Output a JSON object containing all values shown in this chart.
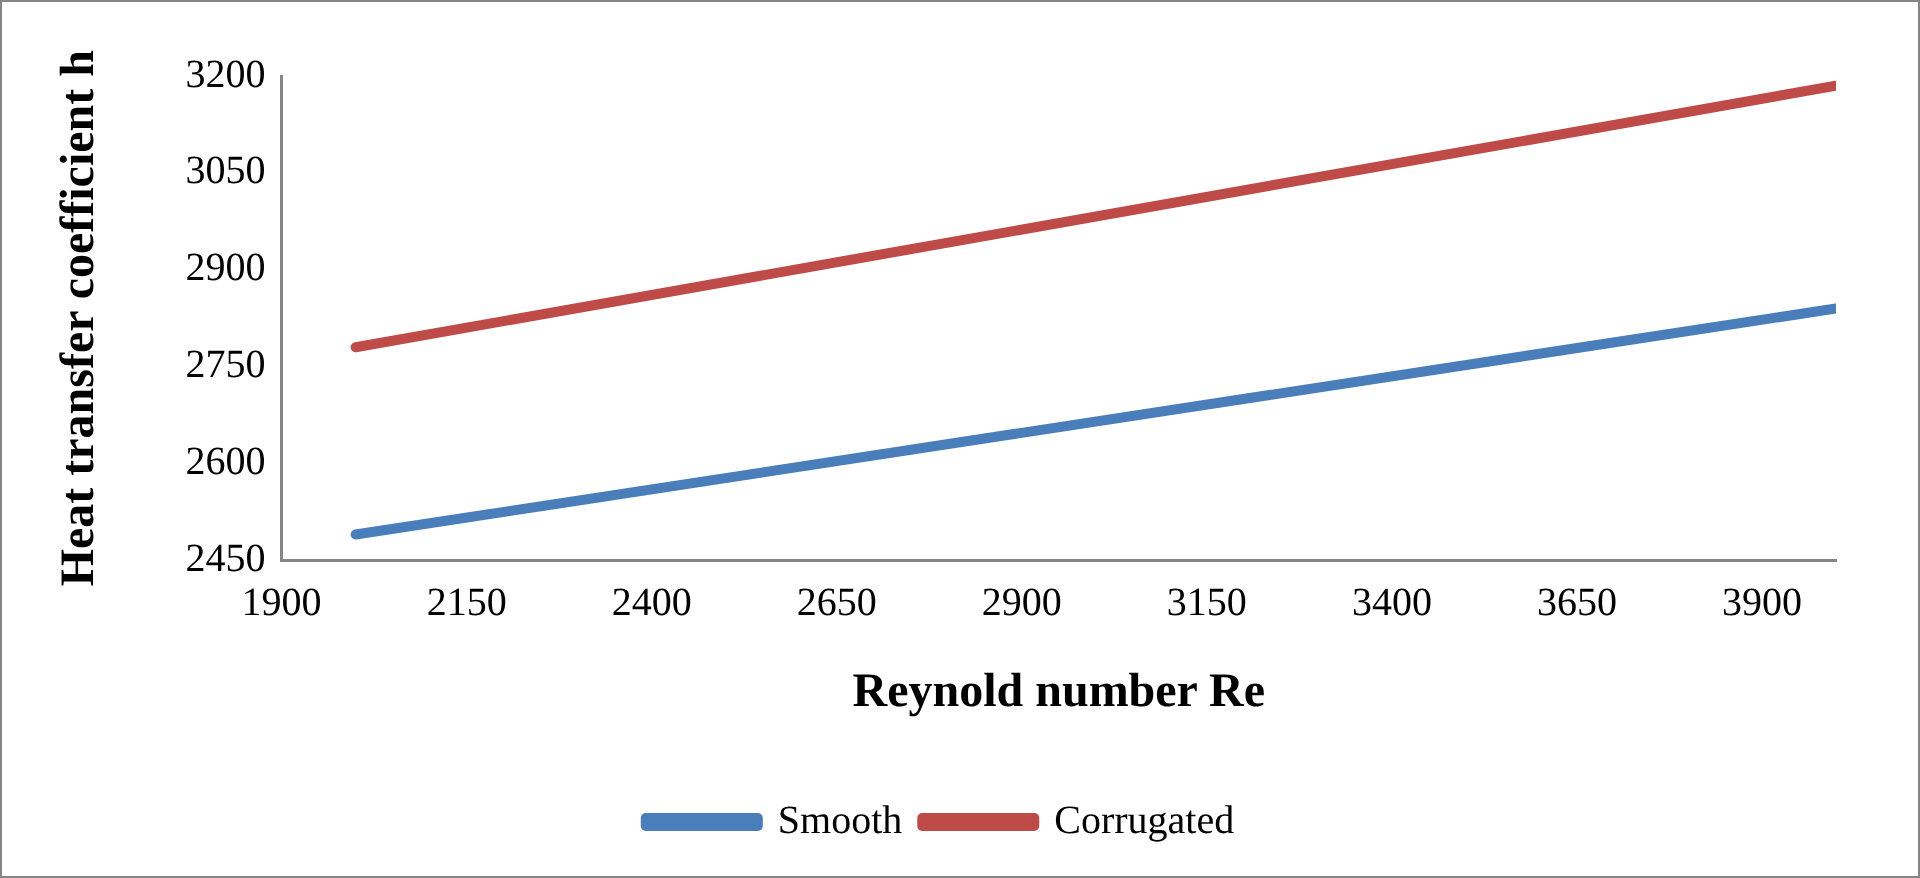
{
  "chart_data": {
    "type": "line",
    "xlabel": "Reynold number Re",
    "ylabel": "Heat transfer coefficient h",
    "xlim": [
      1900,
      4000
    ],
    "xticks": [
      1900,
      2150,
      2400,
      2650,
      2900,
      3150,
      3400,
      3650,
      3900
    ],
    "ylim": [
      2450,
      3200
    ],
    "yticks": [
      2450,
      2600,
      2750,
      2900,
      3050,
      3200
    ],
    "grid": false,
    "legend": "bottom",
    "marker": "none",
    "line_style": "solid",
    "x": [
      2000,
      4000
    ],
    "series": [
      {
        "name": "Smooth",
        "color": "#4a7ebb",
        "values": [
          2490,
          2840
        ]
      },
      {
        "name": "Corrugated",
        "color": "#be4b48",
        "values": [
          2780,
          3185
        ]
      }
    ]
  }
}
